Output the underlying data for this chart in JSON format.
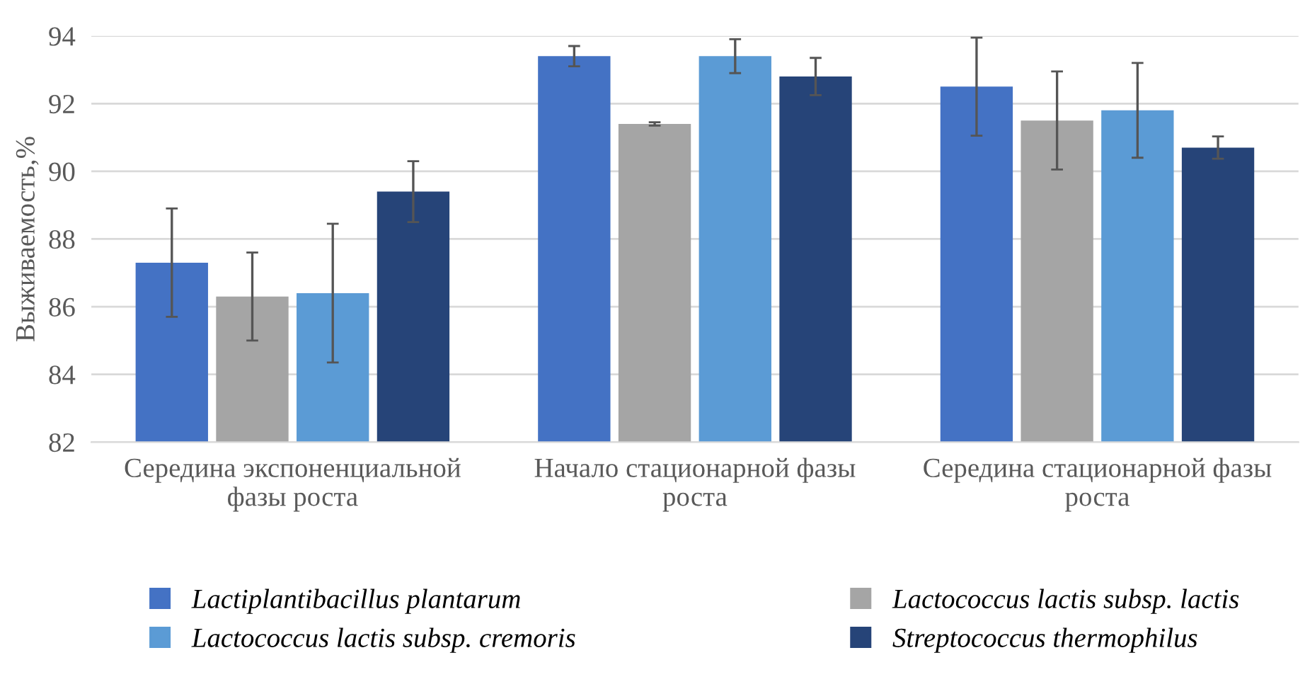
{
  "chart_data": {
    "type": "bar",
    "ylabel": "Выживаемость,%",
    "categories": [
      "Середина экспоненциальной фазы роста",
      "Начало стационарной фазы роста",
      "Середина стационарной фазы роста"
    ],
    "series": [
      {
        "name": "Lactiplantibacillus plantarum",
        "color": "#4472c4",
        "values": [
          87.3,
          93.4,
          92.5
        ],
        "errors": [
          1.6,
          0.3,
          1.45
        ]
      },
      {
        "name": "Lactococcus lactis subsp. lactis",
        "color": "#a5a5a5",
        "values": [
          86.3,
          91.4,
          91.5
        ],
        "errors": [
          1.3,
          0.05,
          1.45
        ]
      },
      {
        "name": "Lactococcus lactis subsp. cremoris",
        "color": "#5b9bd5",
        "values": [
          86.4,
          93.4,
          91.8
        ],
        "errors": [
          2.05,
          0.5,
          1.4
        ]
      },
      {
        "name": "Streptococcus thermophilus",
        "color": "#264478",
        "values": [
          89.4,
          92.8,
          90.7
        ],
        "errors": [
          0.9,
          0.55,
          0.33
        ]
      }
    ],
    "ylim": [
      82,
      94
    ],
    "yticks": [
      82,
      84,
      86,
      88,
      90,
      92,
      94
    ],
    "grid": "y",
    "legend": "bottom"
  }
}
